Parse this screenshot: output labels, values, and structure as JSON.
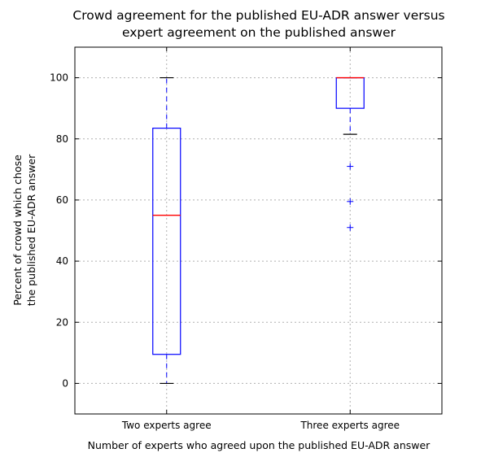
{
  "chart_data": {
    "type": "box",
    "title_lines": [
      "Crowd agreement for the published EU-ADR answer versus",
      "expert agreement on the published answer"
    ],
    "xlabel": "Number of experts who agreed upon the published EU-ADR answer",
    "ylabel_lines": [
      "Percent of crowd which chose",
      "the published EU-ADR answer"
    ],
    "ylim": [
      -10,
      110
    ],
    "yticks": [
      0,
      20,
      40,
      60,
      80,
      100
    ],
    "categories": [
      "Two experts agree",
      "Three experts agree"
    ],
    "boxes": [
      {
        "name": "Two experts agree",
        "whisker_low": 0,
        "q1": 9.5,
        "median": 55,
        "q3": 83.5,
        "whisker_high": 100,
        "outliers": []
      },
      {
        "name": "Three experts agree",
        "whisker_low": 81.5,
        "q1": 90,
        "median": 100,
        "q3": 100,
        "whisker_high": 100,
        "outliers": [
          71,
          59.5,
          51
        ]
      }
    ],
    "grid": true,
    "colors": {
      "box": "#0000ff",
      "median": "#ff0000",
      "whisker": "#0000ff",
      "cap": "#000000",
      "outlier": "#0000ff",
      "grid": "#b0b0b0"
    }
  }
}
